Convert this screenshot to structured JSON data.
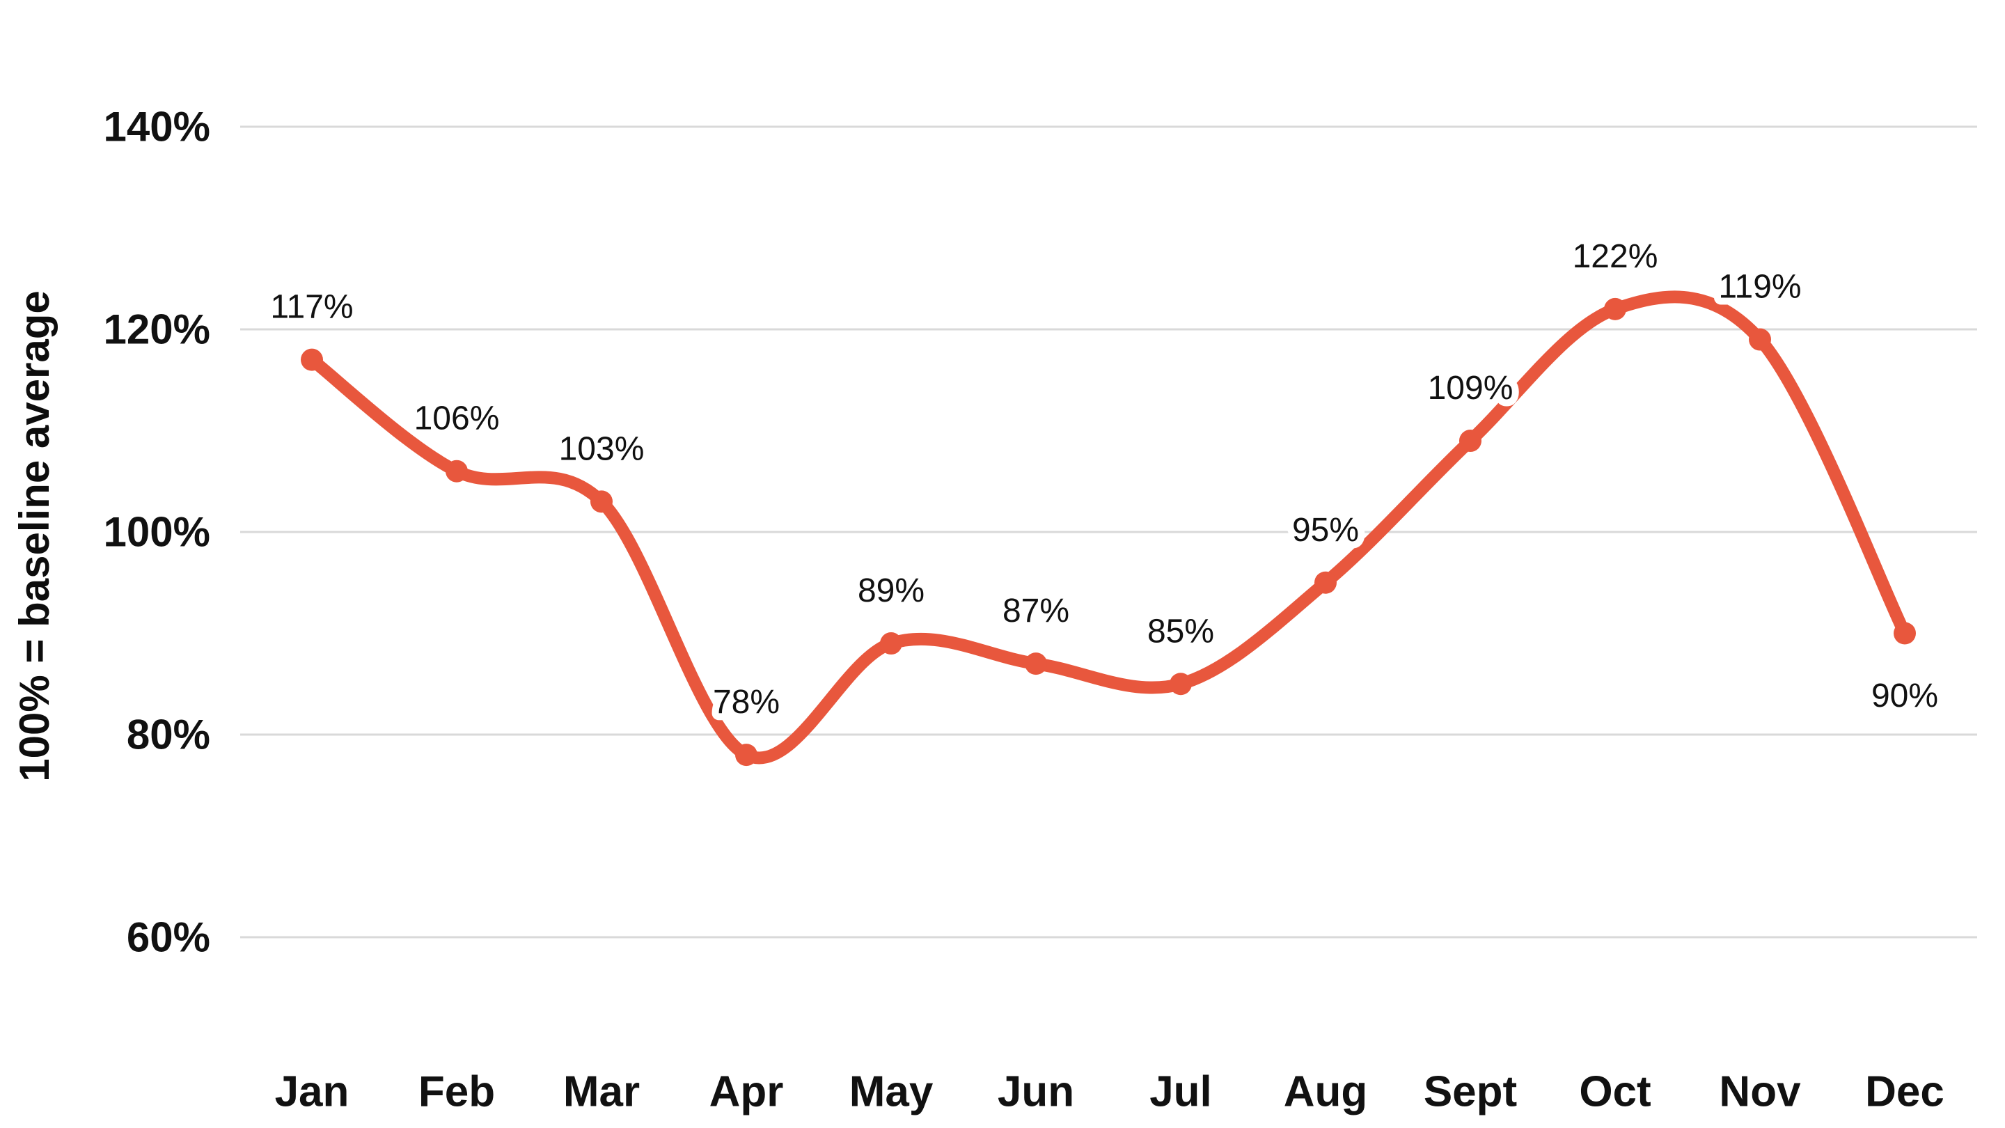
{
  "chart_data": {
    "type": "line",
    "title": "",
    "xlabel": "",
    "ylabel": "100% = baseline average",
    "categories": [
      "Jan",
      "Feb",
      "Mar",
      "Apr",
      "May",
      "Jun",
      "Jul",
      "Aug",
      "Sept",
      "Oct",
      "Nov",
      "Dec"
    ],
    "values": [
      117,
      106,
      103,
      78,
      89,
      87,
      85,
      95,
      109,
      122,
      119,
      90
    ],
    "point_labels": [
      "117%",
      "106%",
      "103%",
      "78%",
      "89%",
      "87%",
      "85%",
      "95%",
      "109%",
      "122%",
      "119%",
      "90%"
    ],
    "labels_below": [
      "Dec"
    ],
    "y_ticks": [
      {
        "label": "140%",
        "value": 140
      },
      {
        "label": "120%",
        "value": 120
      },
      {
        "label": "100%",
        "value": 100
      },
      {
        "label": "80%",
        "value": 80
      },
      {
        "label": "60%",
        "value": 60
      }
    ],
    "ylim": [
      60,
      140
    ],
    "grid": "horizontal",
    "legend_position": "none",
    "curve": "smooth",
    "colors": {
      "line": "#E8573D",
      "marker": "#E8573D",
      "grid": "#D9D9D9",
      "text": "#111111",
      "label_halo": "#FFFFFF",
      "background": "#FFFFFF"
    }
  }
}
